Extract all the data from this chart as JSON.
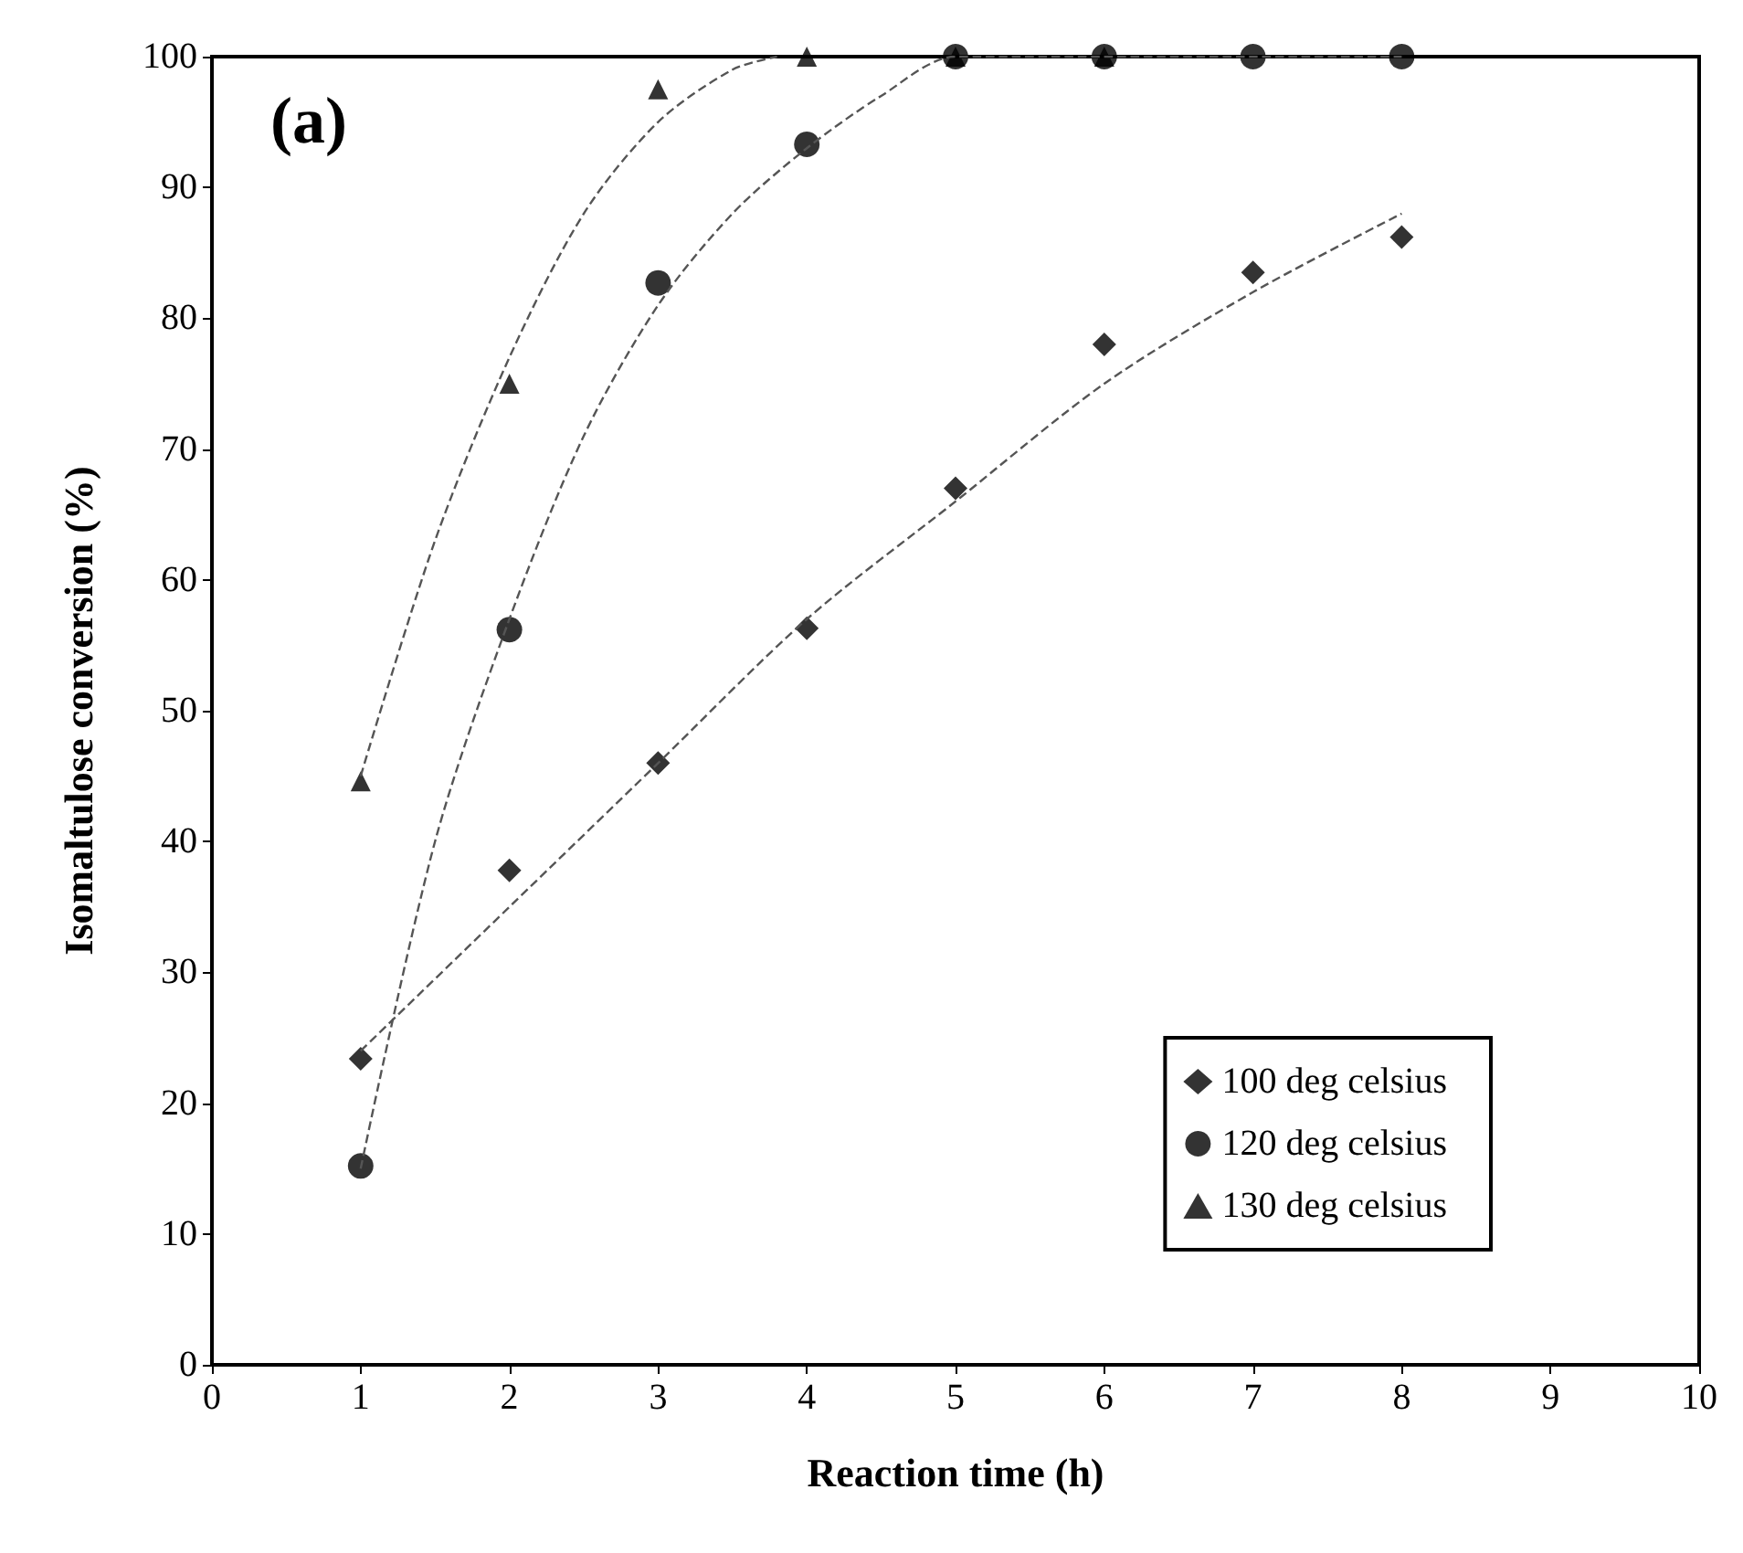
{
  "chart_data": {
    "type": "scatter",
    "xlabel": "Reaction time (h)",
    "ylabel": "Isomaltulose conversion (%)",
    "annotations": [
      "(a)"
    ],
    "xlim": [
      0,
      10
    ],
    "xticks": [
      0,
      1,
      2,
      3,
      4,
      5,
      6,
      7,
      8,
      9,
      10
    ],
    "ylim": [
      0,
      100
    ],
    "yticks": [
      0,
      10,
      20,
      30,
      40,
      50,
      60,
      70,
      80,
      90,
      100
    ],
    "grid": false,
    "legend": "bottom right",
    "series": [
      {
        "name": "100 deg celsius",
        "color": "#000000",
        "marker": "diamond",
        "x": [
          1,
          2,
          3,
          4,
          5,
          6,
          7,
          8
        ],
        "values": [
          23.4,
          37.8,
          46,
          56.3,
          67,
          78,
          83.5,
          86.2
        ]
      },
      {
        "name": "120 deg celsius",
        "color": "#000000",
        "marker": "circle",
        "x": [
          1,
          2,
          3,
          4,
          5,
          6,
          7,
          8
        ],
        "values": [
          15.2,
          56.2,
          82.7,
          93.3,
          100,
          100,
          100,
          100
        ]
      },
      {
        "name": "130 deg celsius",
        "color": "#000000",
        "marker": "triangle",
        "x": [
          1,
          2,
          3,
          4,
          5,
          6
        ],
        "values": [
          44.6,
          75,
          97.5,
          100,
          100,
          100
        ]
      },
      {
        "type": "line",
        "color": "#555555",
        "line_style": "dashed",
        "marker": "none",
        "x": [
          1,
          2,
          3,
          4,
          5,
          6,
          7,
          8
        ],
        "values": [
          24,
          35,
          46,
          57,
          66,
          75,
          82,
          88
        ]
      },
      {
        "type": "line",
        "color": "#555555",
        "line_style": "dashed",
        "marker": "none",
        "x": [
          1,
          1.5,
          2,
          2.5,
          3,
          3.5,
          4,
          4.5,
          5,
          7.3,
          8
        ],
        "values": [
          15,
          40,
          57,
          71,
          81,
          88,
          93,
          97,
          100,
          100,
          100
        ]
      },
      {
        "type": "line",
        "color": "#555555",
        "line_style": "dashed",
        "marker": "none",
        "x": [
          1,
          1.5,
          2,
          2.5,
          3,
          3.5,
          3.8
        ],
        "values": [
          45,
          63,
          77,
          88,
          95,
          99,
          100
        ]
      }
    ]
  }
}
